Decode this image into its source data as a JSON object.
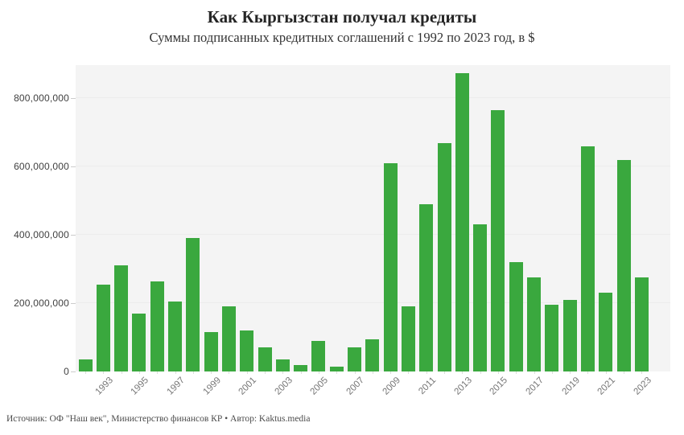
{
  "header": {
    "title": "Как Кыргызстан получал кредиты",
    "subtitle": "Суммы подписанных кредитных соглашений с 1992 по 2023 год, в $"
  },
  "footer": {
    "source": "Источник: ОФ \"Наш век\", Министерство финансов КР • Автор: Kaktus.media"
  },
  "chart_data": {
    "type": "bar",
    "title": "Как Кыргызстан получал кредиты",
    "subtitle": "Суммы подписанных кредитных соглашений с 1992 по 2023 год, в $",
    "xlabel": "",
    "ylabel": "",
    "categories": [
      1992,
      1993,
      1994,
      1995,
      1996,
      1997,
      1998,
      1999,
      2000,
      2001,
      2002,
      2003,
      2004,
      2005,
      2006,
      2007,
      2008,
      2009,
      2010,
      2011,
      2012,
      2013,
      2014,
      2015,
      2016,
      2017,
      2018,
      2019,
      2020,
      2021,
      2022,
      2023
    ],
    "values": [
      35000000,
      255000000,
      310000000,
      170000000,
      265000000,
      205000000,
      390000000,
      115000000,
      190000000,
      120000000,
      70000000,
      35000000,
      20000000,
      90000000,
      15000000,
      70000000,
      95000000,
      610000000,
      190000000,
      490000000,
      670000000,
      875000000,
      430000000,
      765000000,
      320000000,
      275000000,
      195000000,
      210000000,
      660000000,
      230000000,
      620000000,
      275000000
    ],
    "ylim": [
      0,
      900000000
    ],
    "y_ticks": [
      0,
      200000000,
      400000000,
      600000000,
      800000000
    ],
    "y_tick_labels": [
      "0",
      "200,000,000",
      "400,000,000",
      "600,000,000",
      "800,000,000"
    ],
    "x_tick_labels": [
      "1993",
      "1995",
      "1997",
      "1999",
      "2001",
      "2003",
      "2005",
      "2007",
      "2009",
      "2011",
      "2013",
      "2015",
      "2017",
      "2019",
      "2021",
      "2023"
    ],
    "grid": true,
    "legend": false,
    "colors": {
      "bar": "#3aa83e",
      "plot_background": "#f4f4f4",
      "gridline": "#ececec"
    }
  }
}
